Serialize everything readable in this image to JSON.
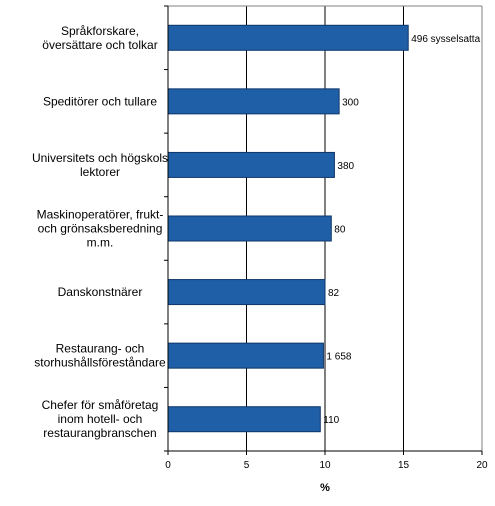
{
  "chart_data": {
    "type": "bar",
    "orientation": "horizontal",
    "categories": [
      [
        "Språkforskare,",
        "översättare och tolkar"
      ],
      [
        "Speditörer och tullare"
      ],
      [
        "Universitets och högskols",
        "lektorer"
      ],
      [
        "Maskinoperatörer, frukt-",
        "och grönsaksberedning",
        "m.m."
      ],
      [
        "Danskonstnärer"
      ],
      [
        "Restaurang- och",
        "storhushållsföreståndare"
      ],
      [
        "Chefer för småföretag",
        "inom hotell- och",
        "restaurangbranschen"
      ]
    ],
    "values": [
      15.3,
      10.9,
      10.6,
      10.4,
      10.0,
      9.9,
      9.7
    ],
    "data_labels": [
      "496 sysselsatta",
      "300",
      "380",
      "80",
      "82",
      "1 658",
      "110"
    ],
    "xlabel": "%",
    "xlim": [
      0,
      20
    ],
    "xticks": [
      "0",
      "5",
      "10",
      "15",
      "20"
    ],
    "xtick_values": [
      0,
      5,
      10,
      15,
      20
    ],
    "grid": "vertical",
    "colors": {
      "bar_fill": "#1f5fa8",
      "bar_stroke": "#0d3569",
      "grid": "#000000",
      "border": "#808080"
    }
  }
}
